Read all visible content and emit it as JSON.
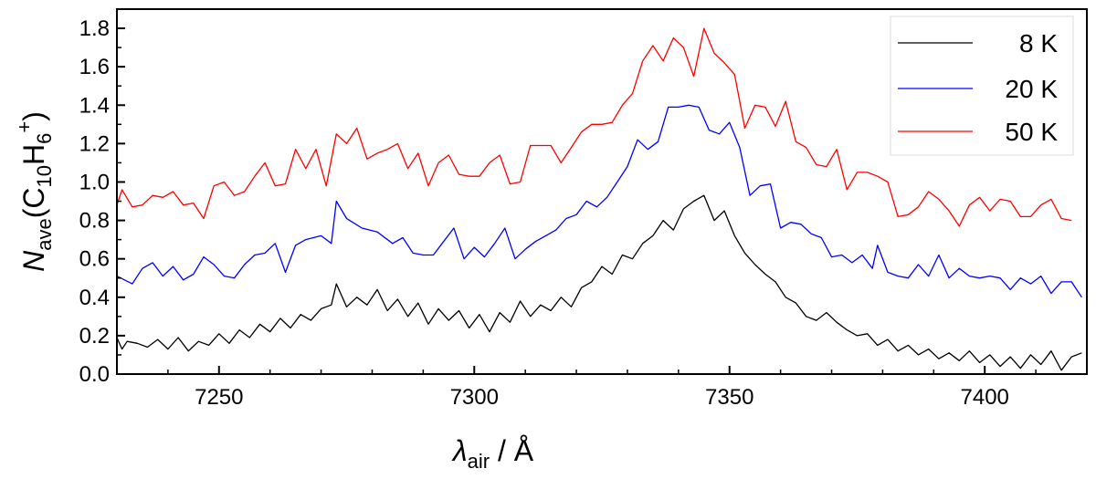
{
  "chart_data": {
    "type": "line",
    "xlabel": {
      "symbol": "λ",
      "subscript": "air",
      "rest": " / Å"
    },
    "ylabel": {
      "symbol": "N",
      "subscript": "ave",
      "formula_open": "(C",
      "sub1": "10",
      "mid": "H",
      "sub2": "6",
      "sup": "+",
      "formula_close": ")"
    },
    "xlim": [
      7230,
      7420
    ],
    "ylim": [
      0.0,
      1.9
    ],
    "x_ticks": [
      7250,
      7300,
      7350,
      7400
    ],
    "y_ticks": [
      0.0,
      0.2,
      0.4,
      0.6,
      0.8,
      1.0,
      1.2,
      1.4,
      1.6,
      1.8
    ],
    "x_tick_labels": [
      "7250",
      "7300",
      "7350",
      "7400"
    ],
    "y_tick_labels": [
      "0.0",
      "0.2",
      "0.4",
      "0.6",
      "0.8",
      "1.0",
      "1.2",
      "1.4",
      "1.6",
      "1.8"
    ],
    "grid": false,
    "legend_position": "top-right",
    "series": [
      {
        "name": "8 K",
        "color": "#000000",
        "points": [
          [
            7230,
            0.19
          ],
          [
            7231,
            0.13
          ],
          [
            7232,
            0.17
          ],
          [
            7234,
            0.16
          ],
          [
            7236,
            0.14
          ],
          [
            7238,
            0.18
          ],
          [
            7240,
            0.13
          ],
          [
            7242,
            0.19
          ],
          [
            7244,
            0.12
          ],
          [
            7246,
            0.17
          ],
          [
            7248,
            0.15
          ],
          [
            7250,
            0.21
          ],
          [
            7252,
            0.16
          ],
          [
            7254,
            0.23
          ],
          [
            7256,
            0.19
          ],
          [
            7258,
            0.26
          ],
          [
            7260,
            0.22
          ],
          [
            7262,
            0.29
          ],
          [
            7264,
            0.24
          ],
          [
            7266,
            0.31
          ],
          [
            7268,
            0.28
          ],
          [
            7270,
            0.34
          ],
          [
            7272,
            0.36
          ],
          [
            7273,
            0.47
          ],
          [
            7275,
            0.35
          ],
          [
            7277,
            0.4
          ],
          [
            7279,
            0.36
          ],
          [
            7281,
            0.44
          ],
          [
            7283,
            0.33
          ],
          [
            7285,
            0.39
          ],
          [
            7287,
            0.3
          ],
          [
            7289,
            0.37
          ],
          [
            7291,
            0.26
          ],
          [
            7293,
            0.34
          ],
          [
            7295,
            0.28
          ],
          [
            7297,
            0.33
          ],
          [
            7299,
            0.24
          ],
          [
            7301,
            0.31
          ],
          [
            7303,
            0.22
          ],
          [
            7305,
            0.32
          ],
          [
            7307,
            0.27
          ],
          [
            7309,
            0.38
          ],
          [
            7311,
            0.3
          ],
          [
            7313,
            0.36
          ],
          [
            7315,
            0.33
          ],
          [
            7317,
            0.4
          ],
          [
            7319,
            0.35
          ],
          [
            7321,
            0.45
          ],
          [
            7323,
            0.48
          ],
          [
            7325,
            0.56
          ],
          [
            7327,
            0.52
          ],
          [
            7329,
            0.62
          ],
          [
            7331,
            0.6
          ],
          [
            7333,
            0.68
          ],
          [
            7335,
            0.72
          ],
          [
            7337,
            0.8
          ],
          [
            7339,
            0.75
          ],
          [
            7341,
            0.86
          ],
          [
            7343,
            0.9
          ],
          [
            7345,
            0.93
          ],
          [
            7347,
            0.8
          ],
          [
            7349,
            0.85
          ],
          [
            7351,
            0.72
          ],
          [
            7353,
            0.63
          ],
          [
            7355,
            0.57
          ],
          [
            7357,
            0.52
          ],
          [
            7359,
            0.48
          ],
          [
            7361,
            0.4
          ],
          [
            7363,
            0.37
          ],
          [
            7365,
            0.3
          ],
          [
            7367,
            0.28
          ],
          [
            7369,
            0.32
          ],
          [
            7371,
            0.27
          ],
          [
            7373,
            0.23
          ],
          [
            7375,
            0.2
          ],
          [
            7377,
            0.21
          ],
          [
            7379,
            0.15
          ],
          [
            7381,
            0.18
          ],
          [
            7383,
            0.12
          ],
          [
            7385,
            0.15
          ],
          [
            7387,
            0.1
          ],
          [
            7389,
            0.13
          ],
          [
            7391,
            0.08
          ],
          [
            7393,
            0.11
          ],
          [
            7395,
            0.07
          ],
          [
            7397,
            0.12
          ],
          [
            7399,
            0.06
          ],
          [
            7401,
            0.1
          ],
          [
            7403,
            0.04
          ],
          [
            7405,
            0.09
          ],
          [
            7407,
            0.03
          ],
          [
            7409,
            0.1
          ],
          [
            7411,
            0.05
          ],
          [
            7413,
            0.12
          ],
          [
            7415,
            0.02
          ],
          [
            7417,
            0.09
          ],
          [
            7419,
            0.11
          ]
        ]
      },
      {
        "name": "20 K",
        "color": "#0000ff",
        "points": [
          [
            7230,
            0.51
          ],
          [
            7233,
            0.47
          ],
          [
            7235,
            0.55
          ],
          [
            7237,
            0.58
          ],
          [
            7239,
            0.51
          ],
          [
            7241,
            0.56
          ],
          [
            7243,
            0.49
          ],
          [
            7245,
            0.52
          ],
          [
            7247,
            0.61
          ],
          [
            7249,
            0.57
          ],
          [
            7251,
            0.51
          ],
          [
            7253,
            0.5
          ],
          [
            7255,
            0.57
          ],
          [
            7257,
            0.62
          ],
          [
            7259,
            0.63
          ],
          [
            7261,
            0.68
          ],
          [
            7263,
            0.53
          ],
          [
            7265,
            0.67
          ],
          [
            7267,
            0.7
          ],
          [
            7270,
            0.72
          ],
          [
            7272,
            0.68
          ],
          [
            7273,
            0.9
          ],
          [
            7275,
            0.81
          ],
          [
            7278,
            0.76
          ],
          [
            7281,
            0.74
          ],
          [
            7284,
            0.68
          ],
          [
            7286,
            0.71
          ],
          [
            7288,
            0.63
          ],
          [
            7290,
            0.62
          ],
          [
            7292,
            0.62
          ],
          [
            7294,
            0.69
          ],
          [
            7296,
            0.76
          ],
          [
            7298,
            0.6
          ],
          [
            7300,
            0.66
          ],
          [
            7302,
            0.61
          ],
          [
            7304,
            0.68
          ],
          [
            7306,
            0.76
          ],
          [
            7308,
            0.6
          ],
          [
            7310,
            0.65
          ],
          [
            7312,
            0.69
          ],
          [
            7314,
            0.72
          ],
          [
            7316,
            0.75
          ],
          [
            7318,
            0.81
          ],
          [
            7320,
            0.83
          ],
          [
            7322,
            0.9
          ],
          [
            7324,
            0.87
          ],
          [
            7326,
            0.92
          ],
          [
            7328,
            1.0
          ],
          [
            7330,
            1.08
          ],
          [
            7332,
            1.22
          ],
          [
            7334,
            1.17
          ],
          [
            7336,
            1.21
          ],
          [
            7338,
            1.39
          ],
          [
            7340,
            1.39
          ],
          [
            7342,
            1.4
          ],
          [
            7344,
            1.39
          ],
          [
            7346,
            1.27
          ],
          [
            7348,
            1.25
          ],
          [
            7350,
            1.31
          ],
          [
            7352,
            1.18
          ],
          [
            7354,
            0.93
          ],
          [
            7356,
            0.98
          ],
          [
            7358,
            0.99
          ],
          [
            7360,
            0.76
          ],
          [
            7362,
            0.79
          ],
          [
            7364,
            0.78
          ],
          [
            7366,
            0.73
          ],
          [
            7368,
            0.71
          ],
          [
            7370,
            0.61
          ],
          [
            7372,
            0.62
          ],
          [
            7374,
            0.58
          ],
          [
            7376,
            0.62
          ],
          [
            7378,
            0.55
          ],
          [
            7379,
            0.67
          ],
          [
            7381,
            0.53
          ],
          [
            7383,
            0.51
          ],
          [
            7385,
            0.5
          ],
          [
            7387,
            0.57
          ],
          [
            7389,
            0.51
          ],
          [
            7391,
            0.62
          ],
          [
            7393,
            0.5
          ],
          [
            7395,
            0.55
          ],
          [
            7397,
            0.51
          ],
          [
            7399,
            0.5
          ],
          [
            7401,
            0.51
          ],
          [
            7403,
            0.5
          ],
          [
            7405,
            0.44
          ],
          [
            7407,
            0.5
          ],
          [
            7409,
            0.47
          ],
          [
            7411,
            0.51
          ],
          [
            7413,
            0.42
          ],
          [
            7415,
            0.48
          ],
          [
            7417,
            0.48
          ],
          [
            7419,
            0.4
          ]
        ]
      },
      {
        "name": "50 K",
        "color": "#ff0000",
        "points": [
          [
            7230,
            0.88
          ],
          [
            7231,
            0.96
          ],
          [
            7233,
            0.87
          ],
          [
            7235,
            0.88
          ],
          [
            7237,
            0.93
          ],
          [
            7239,
            0.92
          ],
          [
            7241,
            0.95
          ],
          [
            7243,
            0.88
          ],
          [
            7245,
            0.89
          ],
          [
            7247,
            0.81
          ],
          [
            7249,
            0.98
          ],
          [
            7251,
            1.0
          ],
          [
            7253,
            0.93
          ],
          [
            7255,
            0.95
          ],
          [
            7257,
            1.03
          ],
          [
            7259,
            1.1
          ],
          [
            7261,
            0.98
          ],
          [
            7263,
            0.99
          ],
          [
            7265,
            1.17
          ],
          [
            7267,
            1.07
          ],
          [
            7269,
            1.17
          ],
          [
            7271,
            0.98
          ],
          [
            7273,
            1.25
          ],
          [
            7275,
            1.2
          ],
          [
            7277,
            1.28
          ],
          [
            7279,
            1.12
          ],
          [
            7281,
            1.15
          ],
          [
            7283,
            1.17
          ],
          [
            7285,
            1.2
          ],
          [
            7287,
            1.07
          ],
          [
            7289,
            1.15
          ],
          [
            7291,
            0.98
          ],
          [
            7293,
            1.1
          ],
          [
            7295,
            1.14
          ],
          [
            7297,
            1.04
          ],
          [
            7299,
            1.03
          ],
          [
            7301,
            1.03
          ],
          [
            7303,
            1.1
          ],
          [
            7305,
            1.14
          ],
          [
            7307,
            0.99
          ],
          [
            7309,
            1.0
          ],
          [
            7311,
            1.19
          ],
          [
            7313,
            1.19
          ],
          [
            7315,
            1.19
          ],
          [
            7317,
            1.1
          ],
          [
            7319,
            1.18
          ],
          [
            7321,
            1.26
          ],
          [
            7323,
            1.3
          ],
          [
            7325,
            1.3
          ],
          [
            7327,
            1.31
          ],
          [
            7329,
            1.4
          ],
          [
            7331,
            1.46
          ],
          [
            7333,
            1.63
          ],
          [
            7335,
            1.71
          ],
          [
            7337,
            1.63
          ],
          [
            7339,
            1.75
          ],
          [
            7341,
            1.7
          ],
          [
            7343,
            1.55
          ],
          [
            7345,
            1.8
          ],
          [
            7347,
            1.67
          ],
          [
            7349,
            1.62
          ],
          [
            7351,
            1.56
          ],
          [
            7353,
            1.28
          ],
          [
            7355,
            1.4
          ],
          [
            7357,
            1.39
          ],
          [
            7359,
            1.29
          ],
          [
            7361,
            1.42
          ],
          [
            7363,
            1.21
          ],
          [
            7365,
            1.18
          ],
          [
            7367,
            1.09
          ],
          [
            7369,
            1.08
          ],
          [
            7371,
            1.17
          ],
          [
            7373,
            0.96
          ],
          [
            7375,
            1.05
          ],
          [
            7377,
            1.05
          ],
          [
            7379,
            1.03
          ],
          [
            7381,
            1.0
          ],
          [
            7383,
            0.82
          ],
          [
            7385,
            0.83
          ],
          [
            7387,
            0.87
          ],
          [
            7389,
            0.95
          ],
          [
            7391,
            0.91
          ],
          [
            7393,
            0.85
          ],
          [
            7395,
            0.77
          ],
          [
            7397,
            0.88
          ],
          [
            7399,
            0.92
          ],
          [
            7401,
            0.85
          ],
          [
            7403,
            0.91
          ],
          [
            7405,
            0.9
          ],
          [
            7407,
            0.82
          ],
          [
            7409,
            0.82
          ],
          [
            7411,
            0.88
          ],
          [
            7413,
            0.91
          ],
          [
            7415,
            0.81
          ],
          [
            7417,
            0.8
          ]
        ]
      }
    ]
  }
}
